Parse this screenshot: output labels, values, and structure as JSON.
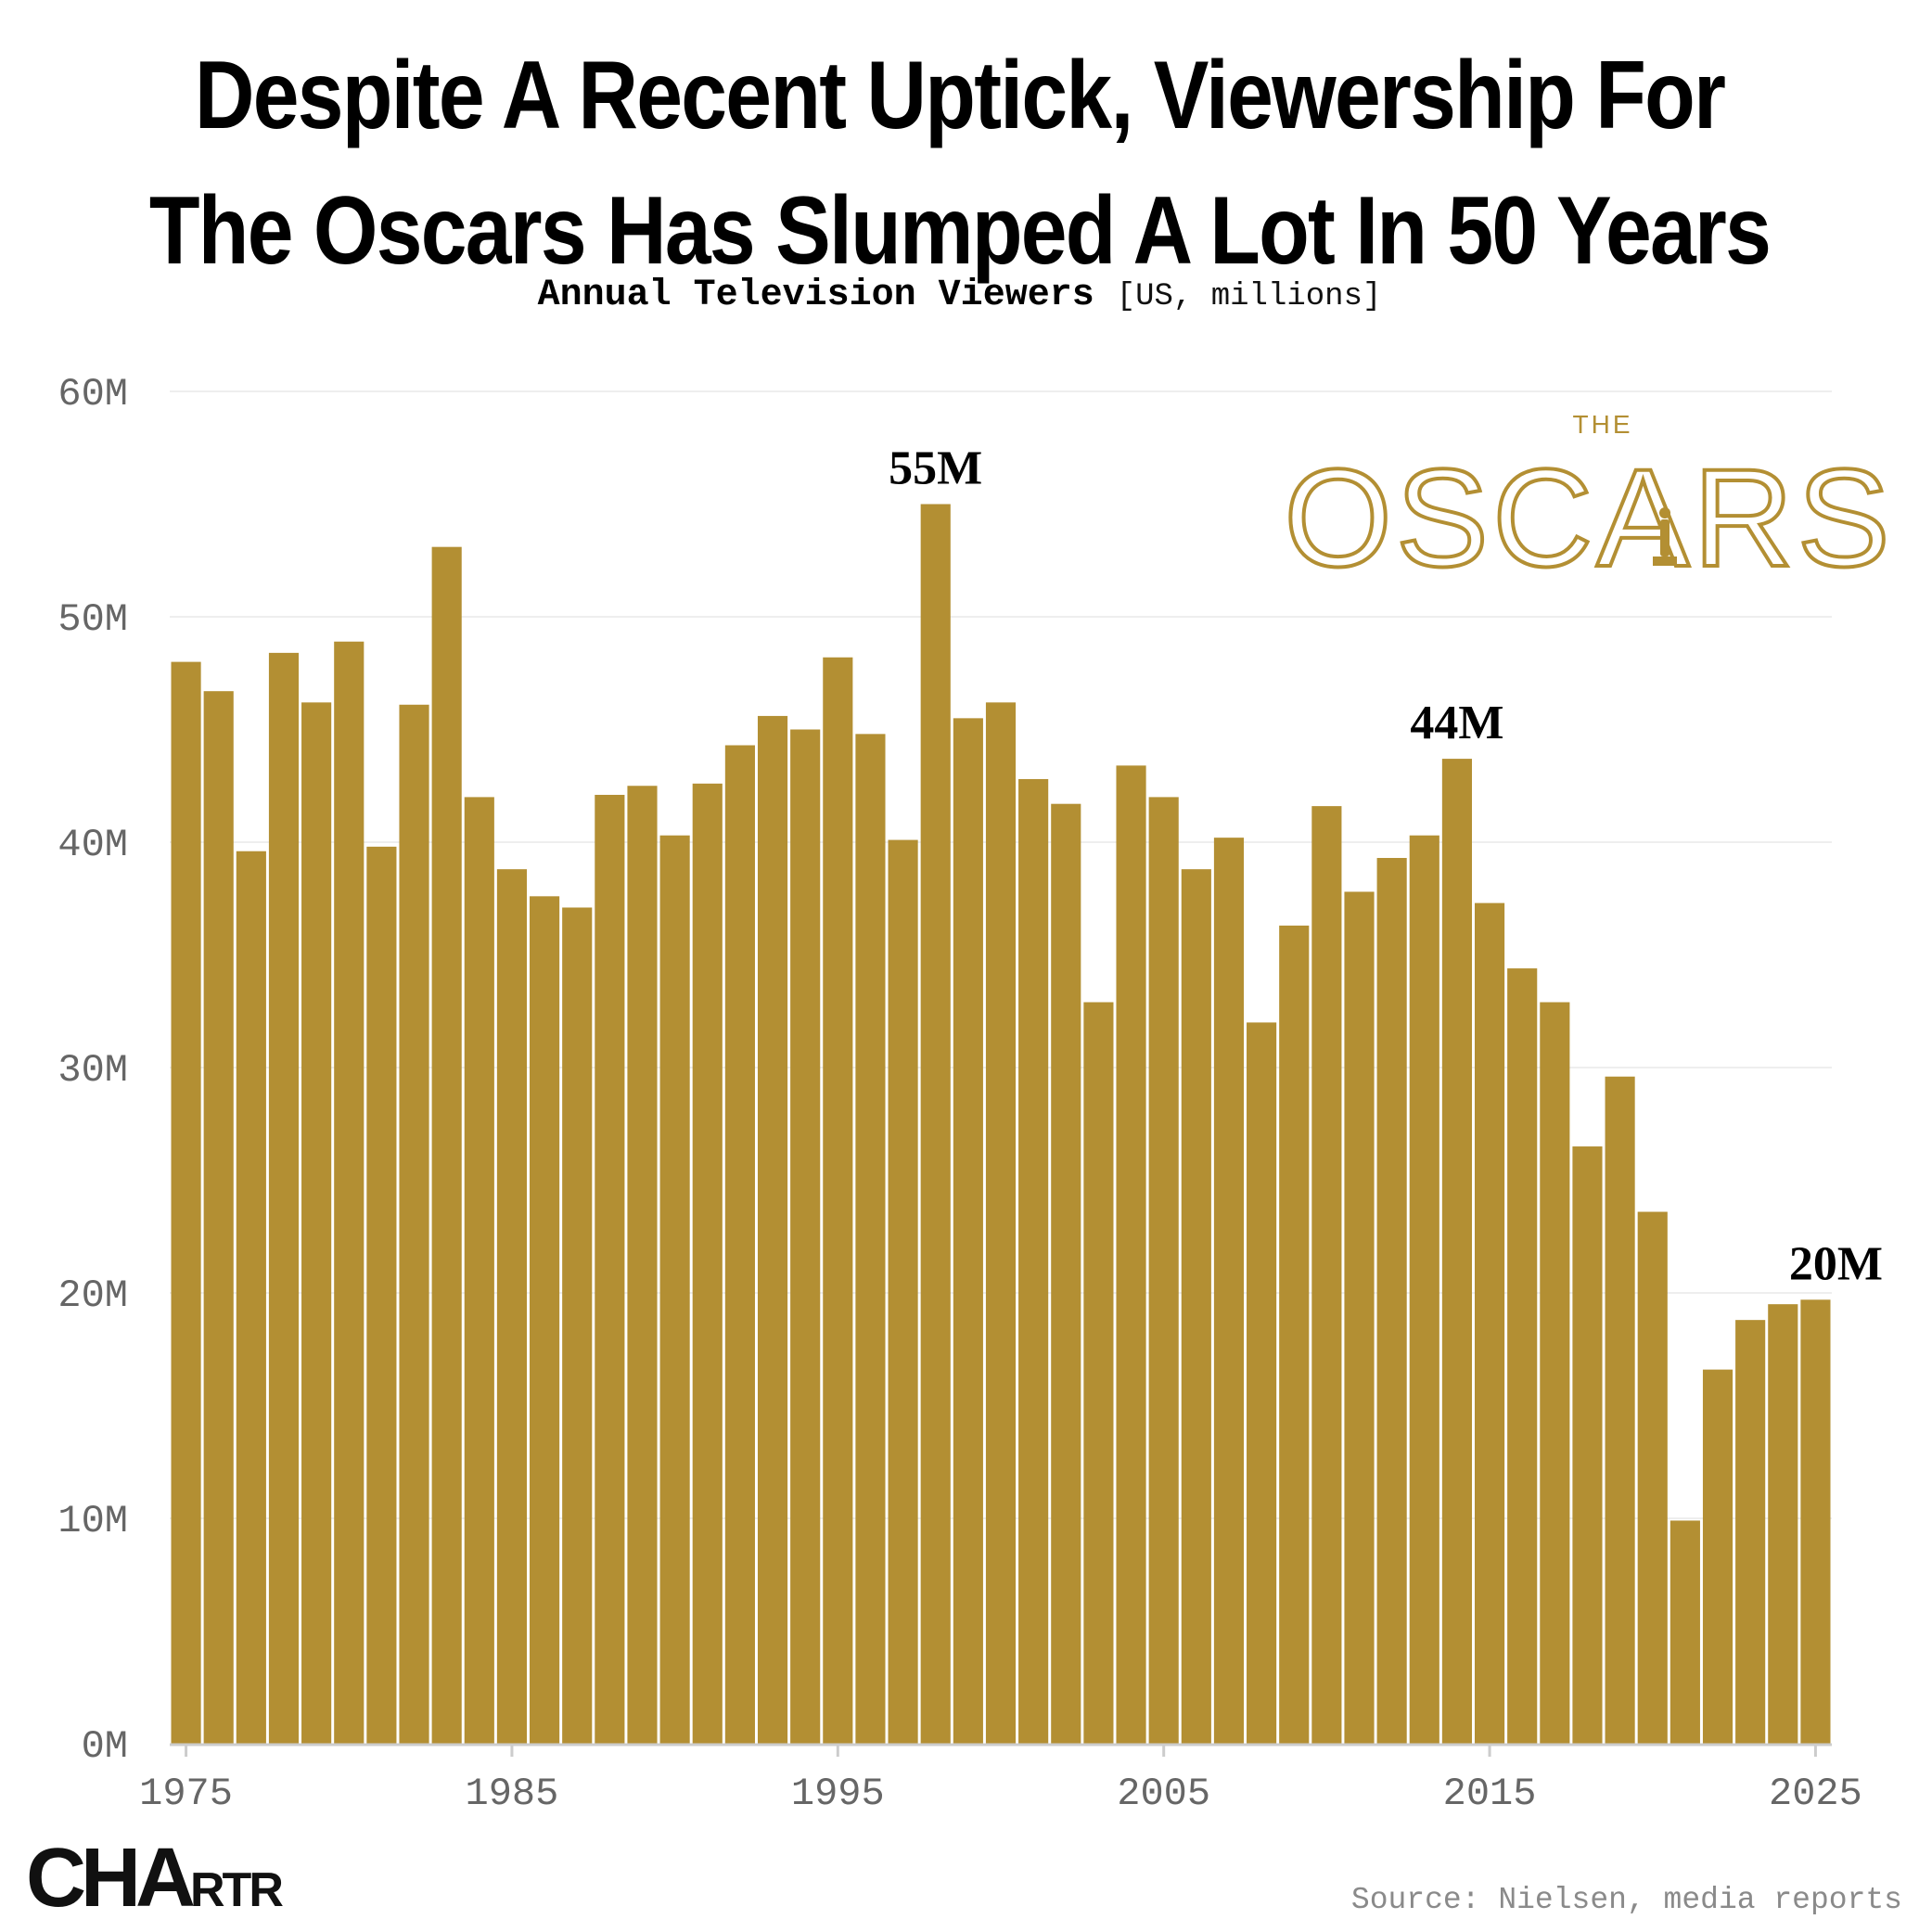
{
  "colors": {
    "bar": "#b38f33",
    "gold": "#b38f33",
    "grid": "#eeeeee",
    "axis": "#cccccc",
    "tick": "#666666"
  },
  "title_line1": "Despite A Recent Uptick, Viewership For",
  "title_line2": "The Oscars Has Slumped A Lot In 50 Years",
  "subtitle_main": "Annual Television Viewers",
  "subtitle_units": "[US, millions]",
  "logo": {
    "small": "THE",
    "big": "OSCARS"
  },
  "brand": {
    "big": "CHA",
    "small": "RTR"
  },
  "source": "Source: Nielsen, media reports",
  "chart_data": {
    "type": "bar",
    "title": "Despite A Recent Uptick, Viewership For The Oscars Has Slumped A Lot In 50 Years",
    "ylabel": "Annual Television Viewers [US, millions]",
    "ylim": [
      0,
      60
    ],
    "yticks": [
      "0M",
      "10M",
      "20M",
      "30M",
      "40M",
      "50M",
      "60M"
    ],
    "xticks": [
      "1975",
      "1985",
      "1995",
      "2005",
      "2015",
      "2025"
    ],
    "grid": true,
    "categories": [
      1975,
      1976,
      1977,
      1978,
      1979,
      1980,
      1981,
      1982,
      1983,
      1984,
      1985,
      1986,
      1987,
      1988,
      1989,
      1990,
      1991,
      1992,
      1993,
      1994,
      1995,
      1996,
      1997,
      1998,
      1999,
      2000,
      2001,
      2002,
      2003,
      2004,
      2005,
      2006,
      2007,
      2008,
      2009,
      2010,
      2011,
      2012,
      2013,
      2014,
      2015,
      2016,
      2017,
      2018,
      2019,
      2020,
      2021,
      2022,
      2023,
      2024,
      2025
    ],
    "values": [
      48.0,
      46.7,
      39.6,
      48.4,
      46.2,
      48.9,
      39.8,
      46.1,
      53.1,
      42.0,
      38.8,
      37.6,
      37.1,
      42.1,
      42.5,
      40.3,
      42.6,
      44.3,
      45.6,
      45.0,
      48.2,
      44.8,
      40.1,
      55.0,
      45.5,
      46.2,
      42.8,
      41.7,
      32.9,
      43.4,
      42.0,
      38.8,
      40.2,
      32.0,
      36.3,
      41.6,
      37.8,
      39.3,
      40.3,
      43.7,
      37.3,
      34.4,
      32.9,
      26.5,
      29.6,
      23.6,
      9.9,
      16.6,
      18.8,
      19.5,
      19.7
    ],
    "annotations": [
      {
        "category": 1998,
        "label": "55M"
      },
      {
        "category": 2014,
        "label": "44M"
      },
      {
        "category": 2025,
        "label": "20M"
      }
    ]
  }
}
